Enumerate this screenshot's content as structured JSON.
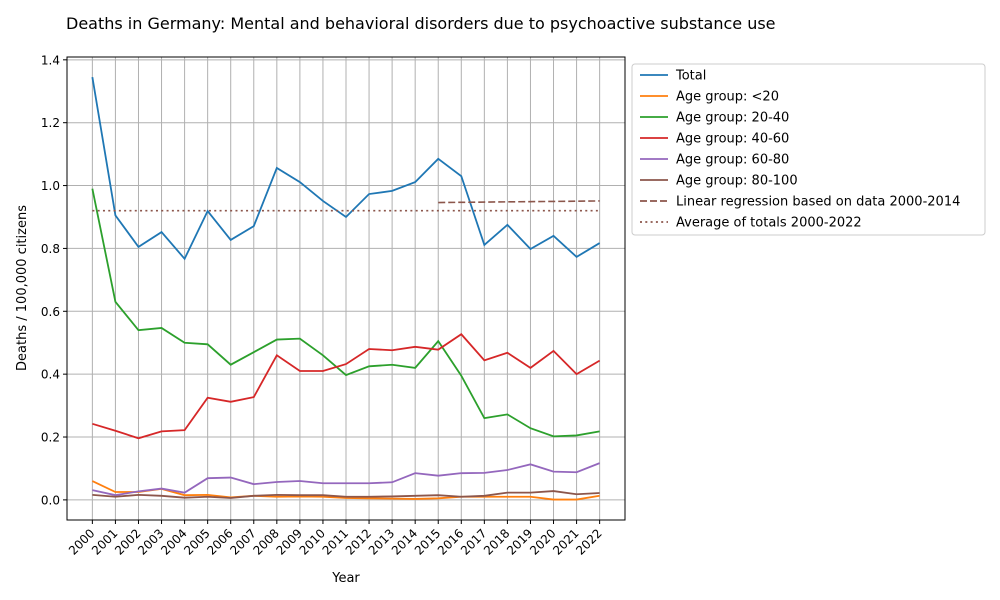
{
  "chart_data": {
    "type": "line",
    "title": "Deaths in Germany: Mental and behavioral disorders due to psychoactive substance use",
    "xlabel": "Year",
    "ylabel": "Deaths / 100,000 citizens",
    "xlim": [
      1998.9,
      2023.1
    ],
    "ylim": [
      -0.064,
      1.409
    ],
    "grid": true,
    "legend_placement": "outside-right",
    "x": [
      2000,
      2001,
      2002,
      2003,
      2004,
      2005,
      2006,
      2007,
      2008,
      2009,
      2010,
      2011,
      2012,
      2013,
      2014,
      2015,
      2016,
      2017,
      2018,
      2019,
      2020,
      2021,
      2022
    ],
    "x_tick_labels": [
      "2000",
      "2001",
      "2002",
      "2003",
      "2004",
      "2005",
      "2006",
      "2007",
      "2008",
      "2009",
      "2010",
      "2011",
      "2012",
      "2013",
      "2014",
      "2015",
      "2016",
      "2017",
      "2018",
      "2019",
      "2020",
      "2021",
      "2022"
    ],
    "y_ticks": [
      0.0,
      0.2,
      0.4,
      0.6,
      0.8,
      1.0,
      1.2,
      1.4
    ],
    "y_tick_labels": [
      "0.0",
      "0.2",
      "0.4",
      "0.6",
      "0.8",
      "1.0",
      "1.2",
      "1.4"
    ],
    "series": [
      {
        "name": "Total",
        "color": "#1f77b4",
        "style": "solid",
        "values": [
          1.345,
          0.905,
          0.805,
          0.852,
          0.767,
          0.919,
          0.827,
          0.871,
          1.056,
          1.011,
          0.951,
          0.9,
          0.973,
          0.983,
          1.011,
          1.085,
          1.03,
          0.811,
          0.875,
          0.798,
          0.84,
          0.773,
          0.817
        ]
      },
      {
        "name": "Age group: <20",
        "color": "#ff7f0e",
        "style": "solid",
        "values": [
          0.06,
          0.025,
          0.025,
          0.035,
          0.015,
          0.016,
          0.008,
          0.013,
          0.01,
          0.011,
          0.01,
          0.006,
          0.005,
          0.004,
          0.003,
          0.005,
          0.01,
          0.01,
          0.01,
          0.01,
          0.001,
          0.001,
          0.013
        ]
      },
      {
        "name": "Age group: 20-40",
        "color": "#2ca02c",
        "style": "solid",
        "values": [
          0.99,
          0.63,
          0.54,
          0.547,
          0.5,
          0.495,
          0.43,
          0.47,
          0.51,
          0.513,
          0.46,
          0.397,
          0.425,
          0.43,
          0.42,
          0.505,
          0.395,
          0.26,
          0.272,
          0.228,
          0.202,
          0.205,
          0.218
        ]
      },
      {
        "name": "Age group: 40-60",
        "color": "#d62728",
        "style": "solid",
        "values": [
          0.242,
          0.22,
          0.196,
          0.218,
          0.222,
          0.325,
          0.312,
          0.327,
          0.46,
          0.41,
          0.41,
          0.432,
          0.48,
          0.476,
          0.487,
          0.478,
          0.527,
          0.444,
          0.468,
          0.42,
          0.474,
          0.4,
          0.443
        ]
      },
      {
        "name": "Age group: 60-80",
        "color": "#9467bd",
        "style": "solid",
        "values": [
          0.031,
          0.015,
          0.027,
          0.036,
          0.023,
          0.069,
          0.071,
          0.05,
          0.057,
          0.06,
          0.053,
          0.053,
          0.053,
          0.056,
          0.085,
          0.077,
          0.085,
          0.086,
          0.095,
          0.113,
          0.09,
          0.088,
          0.117
        ]
      },
      {
        "name": "Age group: 80-100",
        "color": "#8c564b",
        "style": "solid",
        "values": [
          0.016,
          0.01,
          0.016,
          0.013,
          0.007,
          0.01,
          0.006,
          0.013,
          0.016,
          0.015,
          0.015,
          0.01,
          0.01,
          0.011,
          0.013,
          0.015,
          0.01,
          0.013,
          0.023,
          0.023,
          0.028,
          0.018,
          0.022
        ]
      },
      {
        "name": "Linear regression based on data 2000-2014",
        "color": "#8c564b",
        "style": "dashed",
        "x": [
          2015,
          2022
        ],
        "values": [
          0.946,
          0.951
        ]
      },
      {
        "name": "Average of totals 2000-2022",
        "color": "#8c564b",
        "style": "dotted",
        "x": [
          2000,
          2022
        ],
        "values": [
          0.92,
          0.92
        ]
      }
    ]
  }
}
